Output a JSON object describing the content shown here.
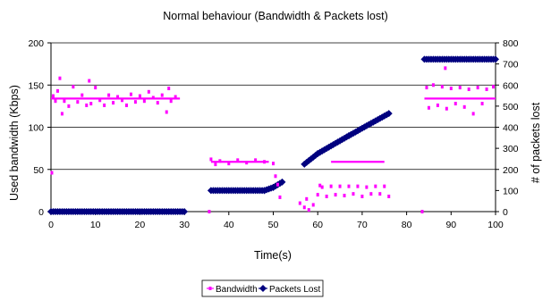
{
  "chart_data": {
    "type": "scatter",
    "title": "Normal behaviour (Bandwidth & Packets lost)",
    "xlabel": "Time(s)",
    "ylabel": "Used bandwidth (Kbps)",
    "y2label": "# of packets lost",
    "xlim": [
      0,
      100
    ],
    "ylim": [
      0,
      200
    ],
    "y2lim": [
      0,
      800
    ],
    "xticks": [
      0,
      10,
      20,
      30,
      40,
      50,
      60,
      70,
      80,
      90,
      100
    ],
    "yticks": [
      0,
      50,
      100,
      150,
      200
    ],
    "y2ticks": [
      0,
      100,
      200,
      300,
      400,
      500,
      600,
      700,
      800
    ],
    "grid": "horizontal",
    "legend_position": "bottom",
    "colors": {
      "bandwidth": "#ff00ff",
      "packets_lost": "#00007f"
    },
    "series": [
      {
        "name": "Bandwidth",
        "axis": "left",
        "marker": "square",
        "main_lines": [
          {
            "x_start": 0,
            "x_end": 29,
            "y": 134
          },
          {
            "x_start": 36,
            "x_end": 49,
            "y": 59
          },
          {
            "x_start": 63,
            "x_end": 75,
            "y": 59
          },
          {
            "x_start": 84,
            "x_end": 100,
            "y": 134
          }
        ],
        "points": [
          [
            0.2,
            46
          ],
          [
            0.5,
            137
          ],
          [
            1,
            131
          ],
          [
            1.5,
            143
          ],
          [
            2,
            158
          ],
          [
            2.5,
            116
          ],
          [
            3,
            131
          ],
          [
            4,
            125
          ],
          [
            5,
            148
          ],
          [
            6,
            130
          ],
          [
            7,
            138
          ],
          [
            8,
            126
          ],
          [
            8.6,
            155
          ],
          [
            9,
            128
          ],
          [
            10,
            147
          ],
          [
            11,
            132
          ],
          [
            12,
            126
          ],
          [
            13,
            138
          ],
          [
            14,
            129
          ],
          [
            15,
            136
          ],
          [
            16,
            132
          ],
          [
            17,
            126
          ],
          [
            18,
            139
          ],
          [
            19,
            130
          ],
          [
            20,
            137
          ],
          [
            21,
            131
          ],
          [
            22,
            142
          ],
          [
            23,
            135
          ],
          [
            24,
            129
          ],
          [
            25,
            138
          ],
          [
            26,
            118
          ],
          [
            26.5,
            146
          ],
          [
            27,
            131
          ],
          [
            28,
            136
          ],
          [
            35.6,
            0
          ],
          [
            36,
            62
          ],
          [
            37,
            56
          ],
          [
            38,
            60
          ],
          [
            40,
            57
          ],
          [
            42,
            61
          ],
          [
            44,
            58
          ],
          [
            46,
            61
          ],
          [
            48,
            59
          ],
          [
            50,
            57
          ],
          [
            50.5,
            42
          ],
          [
            51,
            32
          ],
          [
            51.5,
            17
          ],
          [
            56,
            10
          ],
          [
            57,
            5
          ],
          [
            57.5,
            15
          ],
          [
            58,
            2
          ],
          [
            59,
            8
          ],
          [
            60,
            20
          ],
          [
            60.5,
            31
          ],
          [
            61,
            29
          ],
          [
            62,
            18
          ],
          [
            63,
            30
          ],
          [
            64,
            20
          ],
          [
            65,
            30
          ],
          [
            66,
            19
          ],
          [
            67,
            30
          ],
          [
            68,
            21
          ],
          [
            69,
            30
          ],
          [
            70,
            18
          ],
          [
            71,
            29
          ],
          [
            72,
            21
          ],
          [
            73,
            30
          ],
          [
            74,
            21
          ],
          [
            75,
            30
          ],
          [
            76,
            18
          ],
          [
            83.5,
            0
          ],
          [
            84.5,
            147
          ],
          [
            85,
            123
          ],
          [
            86,
            150
          ],
          [
            87,
            126
          ],
          [
            88,
            148
          ],
          [
            88.7,
            170
          ],
          [
            89,
            122
          ],
          [
            90,
            146
          ],
          [
            91,
            128
          ],
          [
            92,
            147
          ],
          [
            93,
            124
          ],
          [
            94,
            145
          ],
          [
            95,
            116
          ],
          [
            96,
            147
          ],
          [
            97,
            128
          ],
          [
            98,
            145
          ],
          [
            99.5,
            148
          ]
        ]
      },
      {
        "name": "Packets Lost",
        "axis": "right",
        "marker": "diamond",
        "segments": [
          {
            "x_start": 0,
            "x_end": 30,
            "y_start": 0,
            "y_end": 0,
            "step": 0.5
          },
          {
            "x_start": 36,
            "x_end": 48,
            "y_start": 100,
            "y_end": 100,
            "step": 0.5
          },
          {
            "x_start": 48,
            "x_end": 50,
            "y_start": 100,
            "y_end": 115,
            "step": 0.5
          },
          {
            "x_start": 50,
            "x_end": 52,
            "y_start": 115,
            "y_end": 140,
            "step": 0.5
          },
          {
            "x_start": 57,
            "x_end": 60,
            "y_start": 225,
            "y_end": 275,
            "step": 0.5
          },
          {
            "x_start": 60,
            "x_end": 67,
            "y_start": 275,
            "y_end": 360,
            "step": 0.5
          },
          {
            "x_start": 67,
            "x_end": 76,
            "y_start": 360,
            "y_end": 465,
            "step": 0.5
          },
          {
            "x_start": 84,
            "x_end": 100,
            "y_start": 722,
            "y_end": 722,
            "step": 0.5
          }
        ]
      }
    ]
  }
}
